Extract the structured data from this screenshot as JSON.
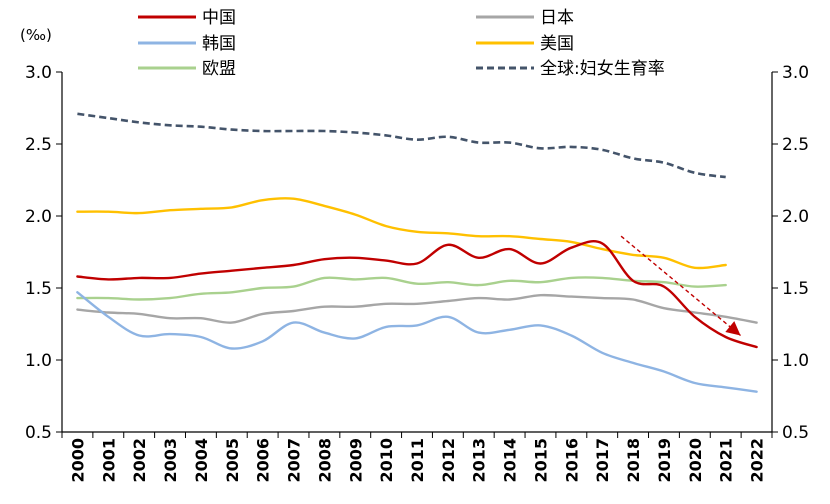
{
  "chart_data": {
    "type": "line",
    "unit_label": "(‰)",
    "x": [
      "2000",
      "2001",
      "2002",
      "2003",
      "2004",
      "2005",
      "2006",
      "2007",
      "2008",
      "2009",
      "2010",
      "2011",
      "2012",
      "2013",
      "2014",
      "2015",
      "2016",
      "2017",
      "2018",
      "2019",
      "2020",
      "2021",
      "2022"
    ],
    "ylim": [
      0.5,
      3.0
    ],
    "yticks": [
      "0.5",
      "1.0",
      "1.5",
      "2.0",
      "2.5",
      "3.0"
    ],
    "legend_placement": "top",
    "series": [
      {
        "name": "中国",
        "color": "#c00000",
        "dash": "solid",
        "values": [
          1.58,
          1.56,
          1.57,
          1.57,
          1.6,
          1.62,
          1.64,
          1.66,
          1.7,
          1.71,
          1.69,
          1.67,
          1.8,
          1.71,
          1.77,
          1.67,
          1.78,
          1.81,
          1.55,
          1.51,
          1.3,
          1.16,
          1.09
        ]
      },
      {
        "name": "韩国",
        "color": "#8eb4e3",
        "dash": "solid",
        "values": [
          1.47,
          1.3,
          1.17,
          1.18,
          1.16,
          1.08,
          1.13,
          1.26,
          1.19,
          1.15,
          1.23,
          1.24,
          1.3,
          1.19,
          1.21,
          1.24,
          1.17,
          1.05,
          0.98,
          0.92,
          0.84,
          0.81,
          0.78
        ]
      },
      {
        "name": "欧盟",
        "color": "#a9d18e",
        "dash": "solid",
        "values": [
          1.43,
          1.43,
          1.42,
          1.43,
          1.46,
          1.47,
          1.5,
          1.51,
          1.57,
          1.56,
          1.57,
          1.53,
          1.54,
          1.52,
          1.55,
          1.54,
          1.57,
          1.57,
          1.55,
          1.54,
          1.51,
          1.52,
          null
        ]
      },
      {
        "name": "日本",
        "color": "#a6a6a6",
        "dash": "solid",
        "values": [
          1.35,
          1.33,
          1.32,
          1.29,
          1.29,
          1.26,
          1.32,
          1.34,
          1.37,
          1.37,
          1.39,
          1.39,
          1.41,
          1.43,
          1.42,
          1.45,
          1.44,
          1.43,
          1.42,
          1.36,
          1.33,
          1.3,
          1.26
        ]
      },
      {
        "name": "美国",
        "color": "#ffc000",
        "dash": "solid",
        "values": [
          2.03,
          2.03,
          2.02,
          2.04,
          2.05,
          2.06,
          2.11,
          2.12,
          2.07,
          2.01,
          1.93,
          1.89,
          1.88,
          1.86,
          1.86,
          1.84,
          1.82,
          1.77,
          1.73,
          1.71,
          1.64,
          1.66,
          null
        ]
      },
      {
        "name": "全球:妇女生育率",
        "color": "#44546a",
        "dash": "dashed",
        "values": [
          2.71,
          2.68,
          2.65,
          2.63,
          2.62,
          2.6,
          2.59,
          2.59,
          2.59,
          2.58,
          2.56,
          2.53,
          2.55,
          2.51,
          2.51,
          2.47,
          2.48,
          2.46,
          2.4,
          2.37,
          2.3,
          2.27,
          null
        ]
      }
    ],
    "legend_rows": [
      [
        "中国",
        "日本"
      ],
      [
        "韩国",
        "美国"
      ],
      [
        "欧盟",
        "全球:妇女生育率"
      ]
    ],
    "annotation": {
      "type": "arrow",
      "color": "#c00000",
      "from_x": "2018",
      "from_y": 1.86,
      "to_x": "2022",
      "to_y": 1.17
    }
  }
}
